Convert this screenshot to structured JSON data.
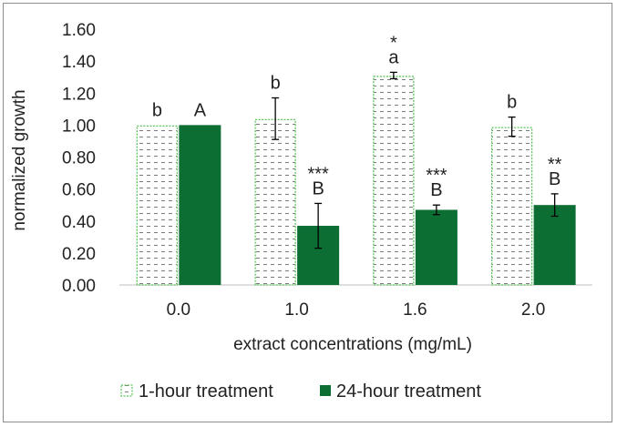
{
  "chart_data": {
    "type": "bar",
    "title": "",
    "xlabel": "extract concentrations (mg/mL)",
    "ylabel": "normalized growth",
    "ylim": [
      0,
      1.6
    ],
    "yticks": [
      "0.00",
      "0.20",
      "0.40",
      "0.60",
      "0.80",
      "1.00",
      "1.20",
      "1.40",
      "1.60"
    ],
    "categories": [
      "0.0",
      "1.0",
      "1.6",
      "2.0"
    ],
    "grid": false,
    "legend_position": "bottom",
    "series": [
      {
        "name": "1-hour treatment",
        "values": [
          1.0,
          1.04,
          1.31,
          0.99
        ],
        "errors": [
          0.0,
          0.13,
          0.02,
          0.06
        ],
        "labels": [
          "b",
          "b",
          "a",
          "b"
        ],
        "stars": [
          "",
          "",
          "*",
          ""
        ],
        "fill": "pattern",
        "color": "#5cc45c"
      },
      {
        "name": "24-hour treatment",
        "values": [
          1.0,
          0.37,
          0.47,
          0.5
        ],
        "errors": [
          0.0,
          0.14,
          0.03,
          0.07
        ],
        "labels": [
          "A",
          "B",
          "B",
          "B"
        ],
        "stars": [
          "",
          "***",
          "***",
          "**"
        ],
        "fill": "solid",
        "color": "#0d6e34"
      }
    ]
  }
}
